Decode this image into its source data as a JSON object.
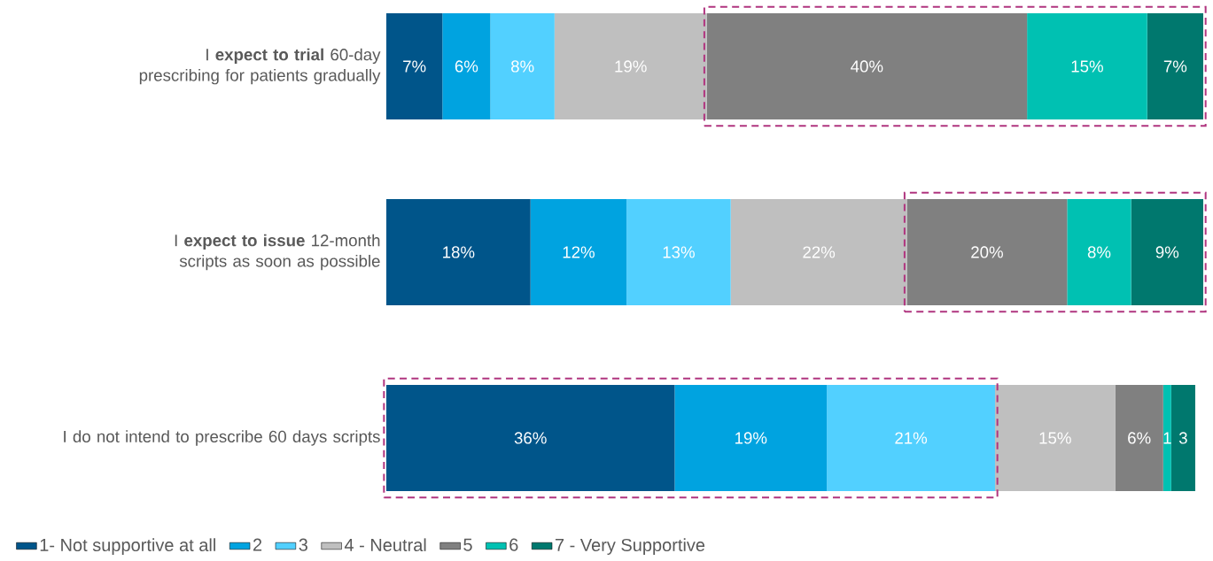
{
  "chart_data": {
    "type": "bar",
    "orientation": "horizontal",
    "stacked": true,
    "categories": [
      "I **expect to trial** 60-day prescribing for patients gradually",
      "I **expect to issue** 12-month scripts as soon as possible",
      "I do not intend to prescribe 60 days scripts"
    ],
    "series": [
      {
        "name": "1- Not supportive at all",
        "color": "#00558a",
        "values": [
          7,
          18,
          36
        ],
        "value_labels": [
          "7%",
          "18%",
          "36%"
        ]
      },
      {
        "name": "2",
        "color": "#00a3e0",
        "values": [
          6,
          12,
          19
        ],
        "value_labels": [
          "6%",
          "12%",
          "19%"
        ]
      },
      {
        "name": "3",
        "color": "#52d0ff",
        "values": [
          8,
          13,
          21
        ],
        "value_labels": [
          "8%",
          "13%",
          "21%"
        ]
      },
      {
        "name": "4 - Neutral",
        "color": "#bfbfbf",
        "values": [
          19,
          22,
          15
        ],
        "value_labels": [
          "19%",
          "22%",
          "15%"
        ]
      },
      {
        "name": "5",
        "color": "#808080",
        "values": [
          40,
          20,
          6
        ],
        "value_labels": [
          "40%",
          "20%",
          "6%"
        ]
      },
      {
        "name": "6",
        "color": "#00c1b2",
        "values": [
          15,
          8,
          1
        ],
        "value_labels": [
          "15%",
          "8%",
          "1"
        ]
      },
      {
        "name": "7 - Very Supportive",
        "color": "#00786e",
        "values": [
          7,
          9,
          3
        ],
        "value_labels": [
          "7%",
          "9%",
          "3"
        ]
      }
    ],
    "legend": "bottom left"
  }
}
